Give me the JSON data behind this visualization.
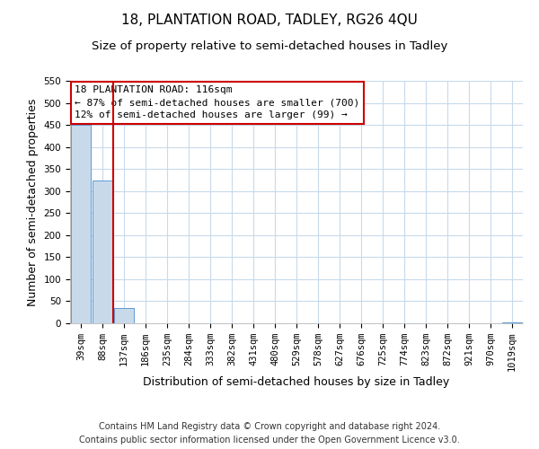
{
  "title": "18, PLANTATION ROAD, TADLEY, RG26 4QU",
  "subtitle": "Size of property relative to semi-detached houses in Tadley",
  "xlabel": "Distribution of semi-detached houses by size in Tadley",
  "ylabel": "Number of semi-detached properties",
  "bin_labels": [
    "39sqm",
    "88sqm",
    "137sqm",
    "186sqm",
    "235sqm",
    "284sqm",
    "333sqm",
    "382sqm",
    "431sqm",
    "480sqm",
    "529sqm",
    "578sqm",
    "627sqm",
    "676sqm",
    "725sqm",
    "774sqm",
    "823sqm",
    "872sqm",
    "921sqm",
    "970sqm",
    "1019sqm"
  ],
  "bar_values": [
    450,
    323,
    35,
    0,
    0,
    0,
    0,
    0,
    0,
    0,
    0,
    0,
    0,
    0,
    0,
    0,
    0,
    0,
    0,
    0,
    3
  ],
  "bar_color": "#c8daea",
  "bar_edgecolor": "#5b9bd5",
  "vline_x": 1.5,
  "vline_color": "#cc0000",
  "ylim": [
    0,
    550
  ],
  "yticks": [
    0,
    50,
    100,
    150,
    200,
    250,
    300,
    350,
    400,
    450,
    500,
    550
  ],
  "annotation_title": "18 PLANTATION ROAD: 116sqm",
  "annotation_line1": "← 87% of semi-detached houses are smaller (700)",
  "annotation_line2": "12% of semi-detached houses are larger (99) →",
  "annotation_box_color": "#ffffff",
  "annotation_box_edgecolor": "#cc0000",
  "footer_line1": "Contains HM Land Registry data © Crown copyright and database right 2024.",
  "footer_line2": "Contains public sector information licensed under the Open Government Licence v3.0.",
  "bg_color": "#ffffff",
  "grid_color": "#c8daea",
  "title_fontsize": 11,
  "subtitle_fontsize": 9.5,
  "axis_label_fontsize": 9,
  "tick_fontsize": 7.5,
  "annotation_fontsize": 8,
  "footer_fontsize": 7
}
